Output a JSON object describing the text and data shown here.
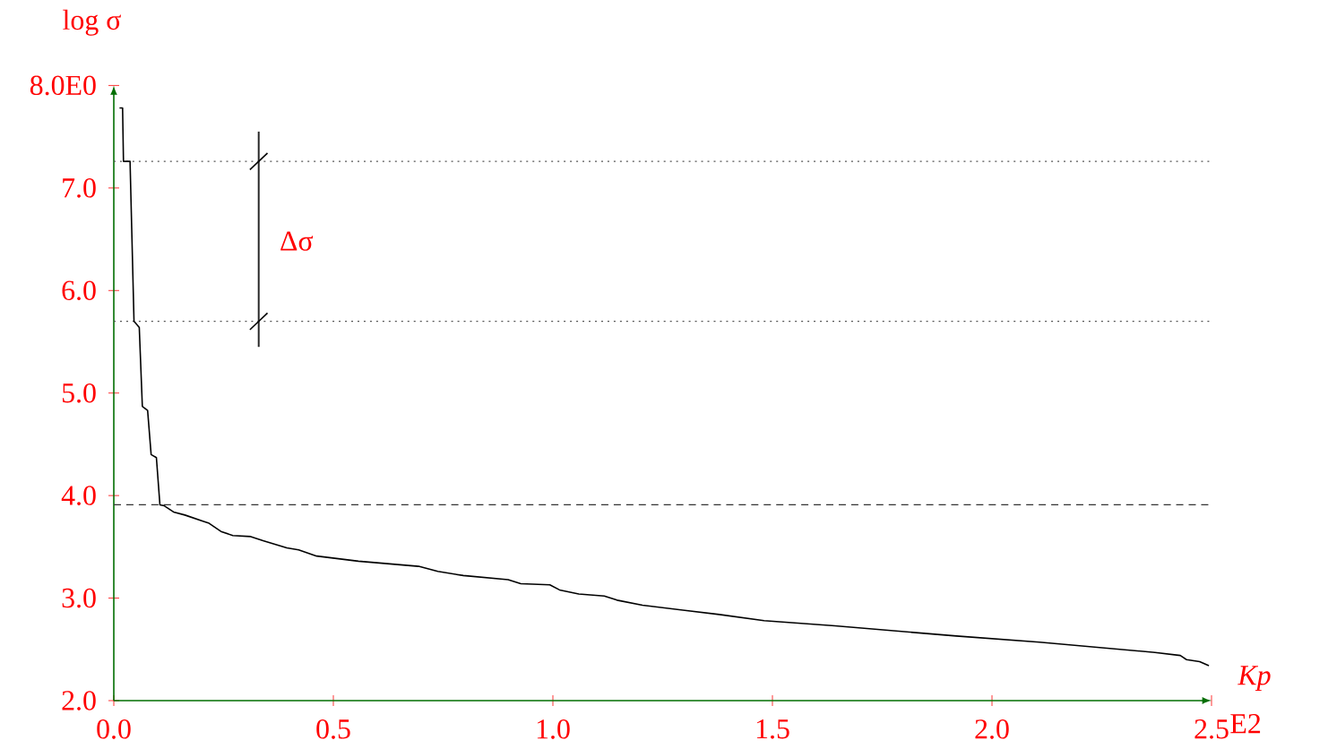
{
  "chart_data": {
    "type": "line",
    "ylabel": "log σ",
    "xlabel": "Kp",
    "xlim": [
      0,
      2.5
    ],
    "ylim": [
      2,
      8
    ],
    "xticks": [
      {
        "value": 0,
        "label": "0.0"
      },
      {
        "value": 0.5,
        "label": "0.5"
      },
      {
        "value": 1,
        "label": "1.0"
      },
      {
        "value": 1.5,
        "label": "1.5"
      },
      {
        "value": 2,
        "label": "2.0"
      },
      {
        "value": 2.5,
        "label": "2.5"
      }
    ],
    "yticks": [
      {
        "value": 2,
        "label": "2.0"
      },
      {
        "value": 3,
        "label": "3.0"
      },
      {
        "value": 4,
        "label": "4.0"
      },
      {
        "value": 5,
        "label": "5.0"
      },
      {
        "value": 6,
        "label": "6.0"
      },
      {
        "value": 7,
        "label": "7.0"
      },
      {
        "value": 8,
        "label": "8.0E0"
      }
    ],
    "grid": false,
    "marker": "none",
    "ref_lines": [
      {
        "axis": "y",
        "value": 7.26,
        "line_style": "dotted",
        "color": "#555555"
      },
      {
        "axis": "y",
        "value": 5.7,
        "line_style": "dotted",
        "color": "#555555"
      },
      {
        "axis": "y",
        "value": 3.91,
        "line_style": "dashed",
        "color": "#333333"
      }
    ],
    "annotations": [
      "Δσ",
      "E2"
    ],
    "series": [
      {
        "color": "#000000",
        "line_style": "solid",
        "x": [
          0.013,
          0.02,
          0.022,
          0.037,
          0.046,
          0.058,
          0.065,
          0.077,
          0.085,
          0.097,
          0.105,
          0.115,
          0.136,
          0.162,
          0.203,
          0.217,
          0.244,
          0.271,
          0.312,
          0.34,
          0.394,
          0.421,
          0.462,
          0.557,
          0.694,
          0.738,
          0.796,
          0.898,
          0.927,
          0.993,
          1.015,
          1.059,
          1.117,
          1.146,
          1.204,
          1.379,
          1.481,
          1.642,
          1.919,
          2.108,
          2.371,
          2.429,
          2.443,
          2.473,
          2.494
        ],
        "values": [
          7.78,
          7.78,
          7.26,
          7.26,
          5.7,
          5.64,
          4.87,
          4.83,
          4.4,
          4.37,
          3.91,
          3.9,
          3.84,
          3.81,
          3.75,
          3.73,
          3.65,
          3.61,
          3.6,
          3.56,
          3.49,
          3.47,
          3.41,
          3.36,
          3.31,
          3.26,
          3.22,
          3.18,
          3.14,
          3.13,
          3.08,
          3.04,
          3.02,
          2.98,
          2.93,
          2.84,
          2.78,
          2.73,
          2.63,
          2.57,
          2.47,
          2.44,
          2.4,
          2.38,
          2.34
        ]
      }
    ]
  }
}
